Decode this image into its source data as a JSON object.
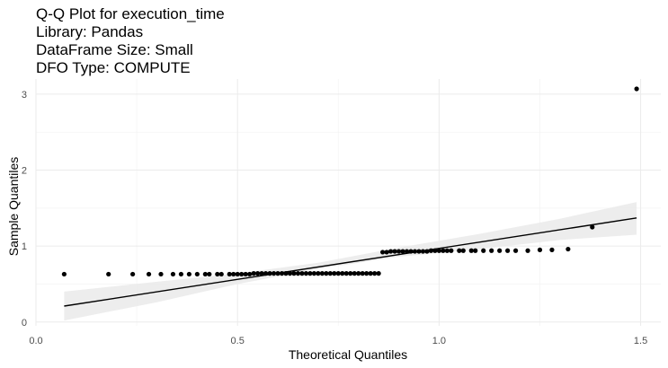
{
  "chart_data": {
    "type": "scatter",
    "title_lines": [
      "Q-Q Plot for execution_time",
      "Library: Pandas",
      "DataFrame Size: Small",
      "DFO Type: COMPUTE"
    ],
    "xlabel": "Theoretical Quantiles",
    "ylabel": "Sample Quantiles",
    "xlim": [
      0.0,
      1.55
    ],
    "ylim": [
      -0.05,
      3.2
    ],
    "x_ticks": [
      0.0,
      0.5,
      1.0,
      1.5
    ],
    "x_tick_labels": [
      "0.0",
      "0.5",
      "1.0",
      "1.5"
    ],
    "y_ticks": [
      0,
      1,
      2,
      3
    ],
    "y_tick_labels": [
      "0",
      "1",
      "2",
      "3"
    ],
    "grid": true,
    "colors": {
      "points": "#000000",
      "line": "#000000",
      "band": "#ebebeb",
      "grid_major": "#ebebeb",
      "grid_minor": "#f4f4f4"
    },
    "reference_line": {
      "x": [
        0.07,
        1.49
      ],
      "y": [
        0.21,
        1.37
      ]
    },
    "confidence_band": {
      "x": [
        0.07,
        0.3,
        0.5,
        0.7,
        0.9,
        1.1,
        1.3,
        1.49
      ],
      "upper": [
        0.4,
        0.53,
        0.64,
        0.78,
        0.98,
        1.16,
        1.36,
        1.58
      ],
      "lower": [
        0.02,
        0.26,
        0.5,
        0.7,
        0.86,
        0.96,
        1.08,
        1.15
      ]
    },
    "points": [
      {
        "x": 0.07,
        "y": 0.63
      },
      {
        "x": 0.18,
        "y": 0.63
      },
      {
        "x": 0.24,
        "y": 0.63
      },
      {
        "x": 0.28,
        "y": 0.63
      },
      {
        "x": 0.31,
        "y": 0.63
      },
      {
        "x": 0.34,
        "y": 0.63
      },
      {
        "x": 0.36,
        "y": 0.63
      },
      {
        "x": 0.38,
        "y": 0.63
      },
      {
        "x": 0.4,
        "y": 0.63
      },
      {
        "x": 0.42,
        "y": 0.63
      },
      {
        "x": 0.43,
        "y": 0.63
      },
      {
        "x": 0.45,
        "y": 0.63
      },
      {
        "x": 0.46,
        "y": 0.63
      },
      {
        "x": 0.48,
        "y": 0.63
      },
      {
        "x": 0.49,
        "y": 0.63
      },
      {
        "x": 0.5,
        "y": 0.63
      },
      {
        "x": 0.51,
        "y": 0.63
      },
      {
        "x": 0.52,
        "y": 0.63
      },
      {
        "x": 0.53,
        "y": 0.63
      },
      {
        "x": 0.54,
        "y": 0.64
      },
      {
        "x": 0.55,
        "y": 0.64
      },
      {
        "x": 0.56,
        "y": 0.64
      },
      {
        "x": 0.57,
        "y": 0.64
      },
      {
        "x": 0.58,
        "y": 0.64
      },
      {
        "x": 0.59,
        "y": 0.64
      },
      {
        "x": 0.6,
        "y": 0.64
      },
      {
        "x": 0.61,
        "y": 0.64
      },
      {
        "x": 0.62,
        "y": 0.64
      },
      {
        "x": 0.63,
        "y": 0.64
      },
      {
        "x": 0.64,
        "y": 0.64
      },
      {
        "x": 0.65,
        "y": 0.64
      },
      {
        "x": 0.66,
        "y": 0.64
      },
      {
        "x": 0.67,
        "y": 0.64
      },
      {
        "x": 0.68,
        "y": 0.64
      },
      {
        "x": 0.69,
        "y": 0.64
      },
      {
        "x": 0.7,
        "y": 0.64
      },
      {
        "x": 0.71,
        "y": 0.64
      },
      {
        "x": 0.72,
        "y": 0.64
      },
      {
        "x": 0.73,
        "y": 0.64
      },
      {
        "x": 0.74,
        "y": 0.64
      },
      {
        "x": 0.75,
        "y": 0.64
      },
      {
        "x": 0.76,
        "y": 0.64
      },
      {
        "x": 0.77,
        "y": 0.64
      },
      {
        "x": 0.78,
        "y": 0.64
      },
      {
        "x": 0.79,
        "y": 0.64
      },
      {
        "x": 0.8,
        "y": 0.64
      },
      {
        "x": 0.81,
        "y": 0.64
      },
      {
        "x": 0.82,
        "y": 0.64
      },
      {
        "x": 0.83,
        "y": 0.64
      },
      {
        "x": 0.84,
        "y": 0.64
      },
      {
        "x": 0.85,
        "y": 0.64
      },
      {
        "x": 0.86,
        "y": 0.92
      },
      {
        "x": 0.87,
        "y": 0.92
      },
      {
        "x": 0.88,
        "y": 0.93
      },
      {
        "x": 0.89,
        "y": 0.93
      },
      {
        "x": 0.9,
        "y": 0.93
      },
      {
        "x": 0.91,
        "y": 0.93
      },
      {
        "x": 0.92,
        "y": 0.93
      },
      {
        "x": 0.93,
        "y": 0.93
      },
      {
        "x": 0.94,
        "y": 0.93
      },
      {
        "x": 0.95,
        "y": 0.93
      },
      {
        "x": 0.96,
        "y": 0.93
      },
      {
        "x": 0.97,
        "y": 0.93
      },
      {
        "x": 0.98,
        "y": 0.94
      },
      {
        "x": 0.99,
        "y": 0.94
      },
      {
        "x": 1.0,
        "y": 0.94
      },
      {
        "x": 1.01,
        "y": 0.94
      },
      {
        "x": 1.02,
        "y": 0.94
      },
      {
        "x": 1.03,
        "y": 0.94
      },
      {
        "x": 1.05,
        "y": 0.94
      },
      {
        "x": 1.06,
        "y": 0.94
      },
      {
        "x": 1.08,
        "y": 0.94
      },
      {
        "x": 1.09,
        "y": 0.94
      },
      {
        "x": 1.11,
        "y": 0.94
      },
      {
        "x": 1.13,
        "y": 0.94
      },
      {
        "x": 1.15,
        "y": 0.94
      },
      {
        "x": 1.17,
        "y": 0.94
      },
      {
        "x": 1.19,
        "y": 0.94
      },
      {
        "x": 1.22,
        "y": 0.94
      },
      {
        "x": 1.25,
        "y": 0.95
      },
      {
        "x": 1.28,
        "y": 0.95
      },
      {
        "x": 1.32,
        "y": 0.96
      },
      {
        "x": 1.38,
        "y": 1.25
      },
      {
        "x": 1.49,
        "y": 3.07
      }
    ]
  }
}
